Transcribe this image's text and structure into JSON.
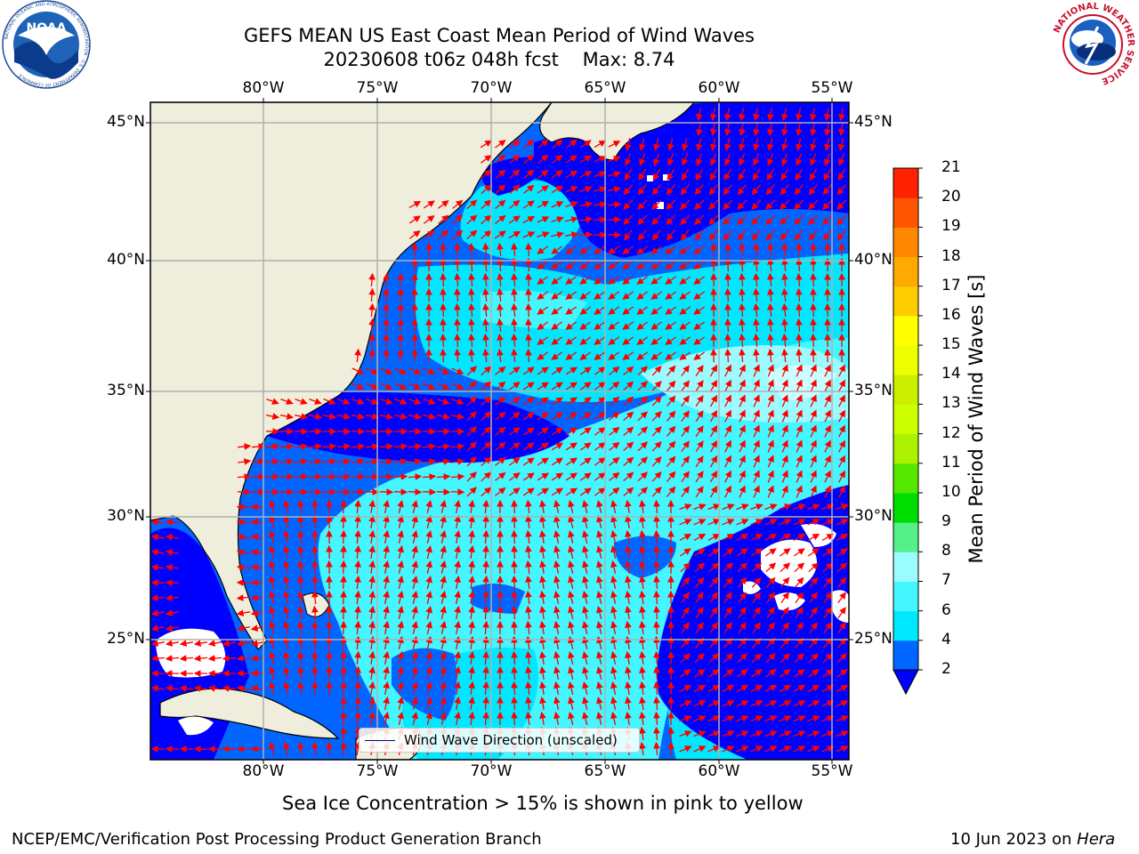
{
  "header": {
    "title": "GEFS MEAN US East Coast Mean Period of Wind Waves",
    "subtitle": "20230608 t06z 048h fcst    Max: 8.74"
  },
  "logos": {
    "left": "NOAA",
    "left_ring_text": "NATIONAL OCEANIC AND ATMOSPHERIC ADMINISTRATION · U.S. DEPARTMENT OF COMMERCE",
    "right_ring_text": "NATIONAL WEATHER SERVICE"
  },
  "map": {
    "lon_ticks_top": [
      "80°W",
      "75°W",
      "70°W",
      "65°W",
      "60°W",
      "55°W"
    ],
    "lon_ticks_bottom": [
      "80°W",
      "75°W",
      "70°W",
      "65°W",
      "60°W",
      "55°W"
    ],
    "lat_ticks_left": [
      "45°N",
      "40°N",
      "35°N",
      "30°N",
      "25°N"
    ],
    "lat_ticks_right": [
      "45°N",
      "40°N",
      "35°N",
      "30°N",
      "25°N"
    ],
    "land_color": "#efeedc",
    "arrow_color": "#ff0000",
    "legend": "Wind Wave Direction (unscaled)"
  },
  "colorbar": {
    "label": "Mean Period of Wind Waves [s]",
    "ticks": [
      "2",
      "4",
      "6",
      "7",
      "8",
      "9",
      "10",
      "11",
      "12",
      "13",
      "14",
      "15",
      "16",
      "17",
      "18",
      "19",
      "20",
      "21"
    ],
    "colors": [
      "#0066ff",
      "#00e8ff",
      "#44f6ff",
      "#9afcff",
      "#55f08a",
      "#00dd00",
      "#55e800",
      "#aaf200",
      "#ccff00",
      "#ccee00",
      "#eeff00",
      "#ffff00",
      "#ffcc00",
      "#ffaa00",
      "#ff8800",
      "#ff5500",
      "#ff2200"
    ],
    "under_color": "#0000ff"
  },
  "notes": {
    "sea_ice": "Sea Ice Concentration > 15% is shown in pink to yellow",
    "footer_left": "NCEP/EMC/Verification Post Processing Product Generation Branch",
    "footer_right_date": "10 Jun 2023 on ",
    "footer_right_machine": "Hera"
  }
}
